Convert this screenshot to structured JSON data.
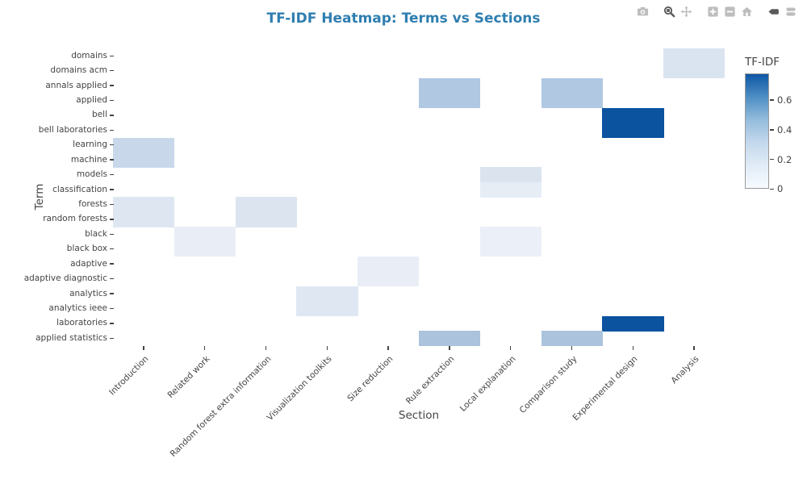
{
  "title": "TF-IDF Heatmap: Terms vs Sections",
  "title_color": "#2f7eb0",
  "modebar": {
    "buttons": [
      {
        "name": "download-plot",
        "icon": "camera-icon",
        "active": false
      },
      {
        "name": "zoom",
        "icon": "magnifier-icon",
        "active": true
      },
      {
        "name": "pan",
        "icon": "pan-arrows-icon",
        "active": false
      },
      {
        "name": "zoom-in",
        "icon": "plus-square-icon",
        "active": false
      },
      {
        "name": "zoom-out",
        "icon": "minus-square-icon",
        "active": false
      },
      {
        "name": "reset-axes",
        "icon": "home-icon",
        "active": false
      },
      {
        "name": "hover-closest",
        "icon": "tooltip-single-icon",
        "active": true
      },
      {
        "name": "hover-compare",
        "icon": "tooltip-double-icon",
        "active": false
      }
    ]
  },
  "chart_data": {
    "type": "heatmap",
    "title": "TF-IDF Heatmap: Terms vs Sections",
    "xlabel": "Section",
    "ylabel": "Term",
    "x_categories": [
      "Introduction",
      "Related work",
      "Random forest extra information",
      "Visualization toolkits",
      "Size reduction",
      "Rule extraction",
      "Local explanation",
      "Comparison study",
      "Experimental design",
      "Analysis"
    ],
    "y_categories": [
      "domains",
      "domains acm",
      "annals applied",
      "applied",
      "bell",
      "bell laboratories",
      "learning",
      "machine",
      "models",
      "classification",
      "forests",
      "random forests",
      "black",
      "black box",
      "adaptive",
      "adaptive diagnostic",
      "analytics",
      "analytics ieee",
      "laboratories",
      "applied statistics"
    ],
    "colorbar": {
      "title": "TF-IDF",
      "ticks": [
        0,
        0.2,
        0.4,
        0.6
      ],
      "zmin": 0,
      "zmax": 0.78,
      "color_low": "#f7fbff",
      "color_high": "#0e57a4"
    },
    "grid": false,
    "legend_position": "right-colorbar",
    "cells": [
      {
        "term": "domains",
        "section": "Analysis",
        "value": 0.14,
        "color": "#dae4f0"
      },
      {
        "term": "domains acm",
        "section": "Analysis",
        "value": 0.14,
        "color": "#dae4f0"
      },
      {
        "term": "annals applied",
        "section": "Rule extraction",
        "value": 0.3,
        "color": "#b0c8e2"
      },
      {
        "term": "applied",
        "section": "Rule extraction",
        "value": 0.3,
        "color": "#b0c8e2"
      },
      {
        "term": "annals applied",
        "section": "Comparison study",
        "value": 0.3,
        "color": "#b0c8e2"
      },
      {
        "term": "applied",
        "section": "Comparison study",
        "value": 0.3,
        "color": "#b0c8e2"
      },
      {
        "term": "bell",
        "section": "Experimental design",
        "value": 0.75,
        "color": "#0b529f"
      },
      {
        "term": "bell laboratories",
        "section": "Experimental design",
        "value": 0.75,
        "color": "#0b529f"
      },
      {
        "term": "learning",
        "section": "Introduction",
        "value": 0.22,
        "color": "#c8d8ea"
      },
      {
        "term": "machine",
        "section": "Introduction",
        "value": 0.22,
        "color": "#c8d8ea"
      },
      {
        "term": "models",
        "section": "Local explanation",
        "value": 0.14,
        "color": "#dbe4ee"
      },
      {
        "term": "classification",
        "section": "Local explanation",
        "value": 0.1,
        "color": "#e7edf5"
      },
      {
        "term": "forests",
        "section": "Introduction",
        "value": 0.13,
        "color": "#dee7f1"
      },
      {
        "term": "random forests",
        "section": "Introduction",
        "value": 0.13,
        "color": "#dee7f1"
      },
      {
        "term": "forests",
        "section": "Random forest extra information",
        "value": 0.13,
        "color": "#dce5ef"
      },
      {
        "term": "random forests",
        "section": "Random forest extra information",
        "value": 0.13,
        "color": "#dce5ef"
      },
      {
        "term": "black",
        "section": "Related work",
        "value": 0.07,
        "color": "#e9eef6"
      },
      {
        "term": "black box",
        "section": "Related work",
        "value": 0.07,
        "color": "#e9eef6"
      },
      {
        "term": "black",
        "section": "Local explanation",
        "value": 0.06,
        "color": "#ebeff7"
      },
      {
        "term": "black box",
        "section": "Local explanation",
        "value": 0.06,
        "color": "#ebeff7"
      },
      {
        "term": "adaptive",
        "section": "Size reduction",
        "value": 0.07,
        "color": "#e9eef6"
      },
      {
        "term": "adaptive diagnostic",
        "section": "Size reduction",
        "value": 0.07,
        "color": "#e9eef6"
      },
      {
        "term": "analytics",
        "section": "Visualization toolkits",
        "value": 0.13,
        "color": "#dfe8f2"
      },
      {
        "term": "analytics ieee",
        "section": "Visualization toolkits",
        "value": 0.13,
        "color": "#dfe8f2"
      },
      {
        "term": "laboratories",
        "section": "Experimental design",
        "value": 0.75,
        "color": "#0b529f"
      },
      {
        "term": "applied statistics",
        "section": "Rule extraction",
        "value": 0.32,
        "color": "#abc3dc"
      },
      {
        "term": "applied statistics",
        "section": "Comparison study",
        "value": 0.32,
        "color": "#abc3dc"
      }
    ]
  }
}
